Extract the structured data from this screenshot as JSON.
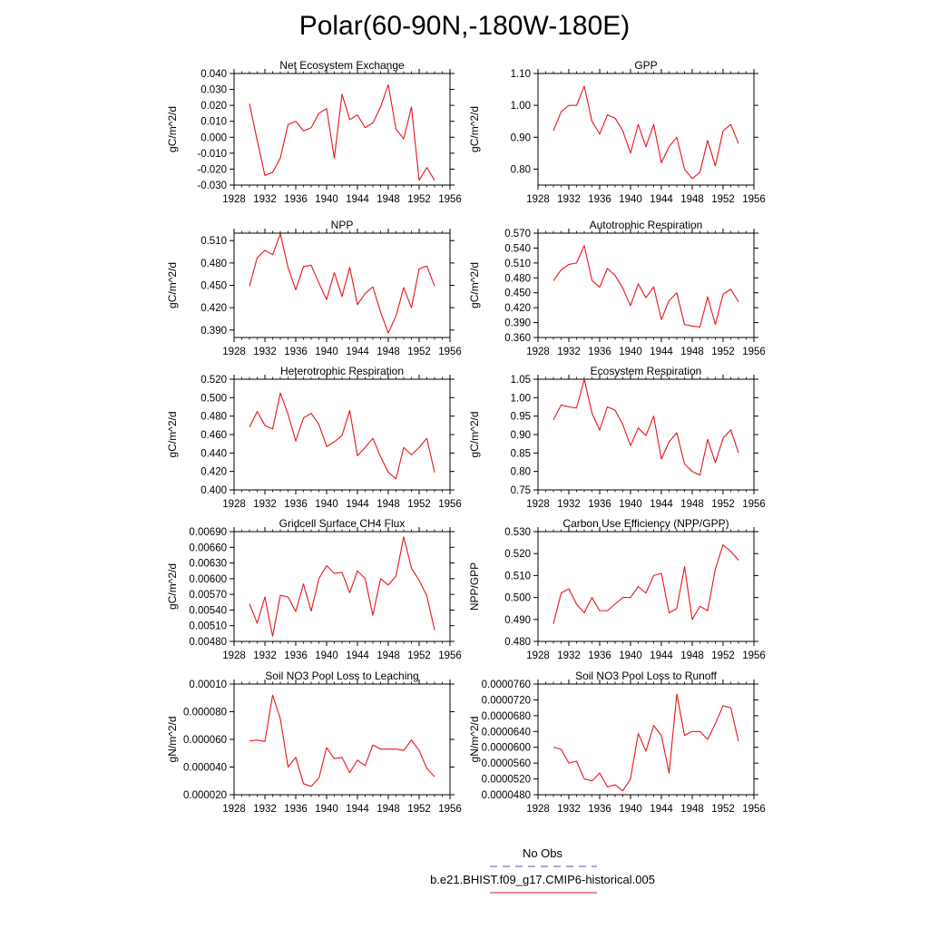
{
  "page_title": "Polar(60-90N,-180W-180E)",
  "series_color": "#e8141a",
  "obs_color": "#5050d0",
  "legend": {
    "obs_label": "No Obs",
    "model_label": "b.e21.BHIST.f09_g17.CMIP6-historical.005"
  },
  "chart_data": [
    {
      "type": "line",
      "title": "Net Ecosystem Exchange",
      "ylabel": "gC/m^2/d",
      "xlim": [
        1928,
        1956
      ],
      "xticks": [
        "1928",
        "1932",
        "1936",
        "1940",
        "1944",
        "1948",
        "1952",
        "1956"
      ],
      "ylim": [
        -0.03,
        0.04
      ],
      "yticks": [
        "-0.030",
        "-0.020",
        "-0.010",
        "0.000",
        "0.010",
        "0.020",
        "0.030",
        "0.040"
      ],
      "x": [
        1930,
        1931,
        1932,
        1933,
        1934,
        1935,
        1936,
        1937,
        1938,
        1939,
        1940,
        1941,
        1942,
        1943,
        1944,
        1945,
        1946,
        1947,
        1948,
        1949,
        1950,
        1951,
        1952,
        1953,
        1954
      ],
      "values": [
        0.021,
        -0.002,
        -0.024,
        -0.022,
        -0.013,
        0.008,
        0.01,
        0.004,
        0.006,
        0.015,
        0.018,
        -0.013,
        0.027,
        0.011,
        0.014,
        0.006,
        0.009,
        0.019,
        0.033,
        0.005,
        -0.001,
        0.019,
        -0.027,
        -0.019,
        -0.027
      ]
    },
    {
      "type": "line",
      "title": "GPP",
      "ylabel": "gC/m^2/d",
      "xlim": [
        1928,
        1956
      ],
      "xticks": [
        "1928",
        "1932",
        "1936",
        "1940",
        "1944",
        "1948",
        "1952",
        "1956"
      ],
      "ylim": [
        0.75,
        1.1
      ],
      "yticks": [
        "0.80",
        "0.90",
        "1.00",
        "1.10"
      ],
      "x": [
        1930,
        1931,
        1932,
        1933,
        1934,
        1935,
        1936,
        1937,
        1938,
        1939,
        1940,
        1941,
        1942,
        1943,
        1944,
        1945,
        1946,
        1947,
        1948,
        1949,
        1950,
        1951,
        1952,
        1953,
        1954
      ],
      "values": [
        0.92,
        0.98,
        1.0,
        1.0,
        1.06,
        0.95,
        0.91,
        0.97,
        0.96,
        0.92,
        0.85,
        0.94,
        0.87,
        0.94,
        0.82,
        0.87,
        0.9,
        0.8,
        0.77,
        0.79,
        0.89,
        0.81,
        0.92,
        0.94,
        0.88
      ]
    },
    {
      "type": "line",
      "title": "NPP",
      "ylabel": "gC/m^2/d",
      "xlim": [
        1928,
        1956
      ],
      "xticks": [
        "1928",
        "1932",
        "1936",
        "1940",
        "1944",
        "1948",
        "1952",
        "1956"
      ],
      "ylim": [
        0.38,
        0.52
      ],
      "yticks": [
        "0.390",
        "0.420",
        "0.450",
        "0.480",
        "0.510"
      ],
      "x": [
        1930,
        1931,
        1932,
        1933,
        1934,
        1935,
        1936,
        1937,
        1938,
        1939,
        1940,
        1941,
        1942,
        1943,
        1944,
        1945,
        1946,
        1947,
        1948,
        1949,
        1950,
        1951,
        1952,
        1953,
        1954
      ],
      "values": [
        0.449,
        0.487,
        0.497,
        0.491,
        0.519,
        0.474,
        0.444,
        0.475,
        0.477,
        0.453,
        0.431,
        0.467,
        0.435,
        0.474,
        0.424,
        0.439,
        0.448,
        0.414,
        0.386,
        0.409,
        0.447,
        0.42,
        0.472,
        0.476,
        0.449
      ]
    },
    {
      "type": "line",
      "title": "Autotrophic Respiration",
      "ylabel": "gC/m^2/d",
      "xlim": [
        1928,
        1956
      ],
      "xticks": [
        "1928",
        "1932",
        "1936",
        "1940",
        "1944",
        "1948",
        "1952",
        "1956"
      ],
      "ylim": [
        0.36,
        0.57
      ],
      "yticks": [
        "0.360",
        "0.390",
        "0.420",
        "0.450",
        "0.480",
        "0.510",
        "0.540",
        "0.570"
      ],
      "x": [
        1930,
        1931,
        1932,
        1933,
        1934,
        1935,
        1936,
        1937,
        1938,
        1939,
        1940,
        1941,
        1942,
        1943,
        1944,
        1945,
        1946,
        1947,
        1948,
        1949,
        1950,
        1951,
        1952,
        1953,
        1954
      ],
      "values": [
        0.474,
        0.496,
        0.507,
        0.51,
        0.545,
        0.475,
        0.461,
        0.499,
        0.485,
        0.459,
        0.424,
        0.468,
        0.44,
        0.462,
        0.396,
        0.434,
        0.45,
        0.386,
        0.383,
        0.381,
        0.442,
        0.386,
        0.447,
        0.457,
        0.432
      ]
    },
    {
      "type": "line",
      "title": "Heterotrophic Respiration",
      "ylabel": "gC/m^2/d",
      "xlim": [
        1928,
        1956
      ],
      "xticks": [
        "1928",
        "1932",
        "1936",
        "1940",
        "1944",
        "1948",
        "1952",
        "1956"
      ],
      "ylim": [
        0.4,
        0.52
      ],
      "yticks": [
        "0.400",
        "0.420",
        "0.440",
        "0.460",
        "0.480",
        "0.500",
        "0.520"
      ],
      "x": [
        1930,
        1931,
        1932,
        1933,
        1934,
        1935,
        1936,
        1937,
        1938,
        1939,
        1940,
        1941,
        1942,
        1943,
        1944,
        1945,
        1946,
        1947,
        1948,
        1949,
        1950,
        1951,
        1952,
        1953,
        1954
      ],
      "values": [
        0.468,
        0.485,
        0.47,
        0.466,
        0.505,
        0.482,
        0.453,
        0.478,
        0.483,
        0.471,
        0.447,
        0.452,
        0.459,
        0.486,
        0.437,
        0.446,
        0.456,
        0.436,
        0.419,
        0.412,
        0.446,
        0.438,
        0.446,
        0.456,
        0.419
      ]
    },
    {
      "type": "line",
      "title": "Ecosystem Respiration",
      "ylabel": "gC/m^2/d",
      "xlim": [
        1928,
        1956
      ],
      "xticks": [
        "1928",
        "1932",
        "1936",
        "1940",
        "1944",
        "1948",
        "1952",
        "1956"
      ],
      "ylim": [
        0.75,
        1.05
      ],
      "yticks": [
        "0.75",
        "0.80",
        "0.85",
        "0.90",
        "0.95",
        "1.00",
        "1.05"
      ],
      "x": [
        1930,
        1931,
        1932,
        1933,
        1934,
        1935,
        1936,
        1937,
        1938,
        1939,
        1940,
        1941,
        1942,
        1943,
        1944,
        1945,
        1946,
        1947,
        1948,
        1949,
        1950,
        1951,
        1952,
        1953,
        1954
      ],
      "values": [
        0.94,
        0.98,
        0.975,
        0.972,
        1.05,
        0.958,
        0.912,
        0.975,
        0.966,
        0.927,
        0.87,
        0.918,
        0.897,
        0.95,
        0.834,
        0.88,
        0.905,
        0.82,
        0.8,
        0.79,
        0.887,
        0.824,
        0.89,
        0.913,
        0.85
      ]
    },
    {
      "type": "line",
      "title": "Gridcell Surface CH4 Flux",
      "ylabel": "gC/m^2/d",
      "xlim": [
        1928,
        1956
      ],
      "xticks": [
        "1928",
        "1932",
        "1936",
        "1940",
        "1944",
        "1948",
        "1952",
        "1956"
      ],
      "ylim": [
        0.0048,
        0.0069
      ],
      "yticks": [
        "0.00480",
        "0.00510",
        "0.00540",
        "0.00570",
        "0.00600",
        "0.00630",
        "0.00660",
        "0.00690"
      ],
      "x": [
        1930,
        1931,
        1932,
        1933,
        1934,
        1935,
        1936,
        1937,
        1938,
        1939,
        1940,
        1941,
        1942,
        1943,
        1944,
        1945,
        1946,
        1947,
        1948,
        1949,
        1950,
        1951,
        1952,
        1953,
        1954
      ],
      "values": [
        0.00552,
        0.00515,
        0.00565,
        0.0049,
        0.00568,
        0.00565,
        0.00537,
        0.0059,
        0.00538,
        0.006,
        0.00625,
        0.0061,
        0.00612,
        0.00573,
        0.00615,
        0.006,
        0.0053,
        0.006,
        0.00588,
        0.00605,
        0.0068,
        0.0062,
        0.00597,
        0.00567,
        0.00502
      ]
    },
    {
      "type": "line",
      "title": "Carbon Use Efficiency (NPP/GPP)",
      "ylabel": "NPP/GPP",
      "xlim": [
        1928,
        1956
      ],
      "xticks": [
        "1928",
        "1932",
        "1936",
        "1940",
        "1944",
        "1948",
        "1952",
        "1956"
      ],
      "ylim": [
        0.48,
        0.53
      ],
      "yticks": [
        "0.480",
        "0.490",
        "0.500",
        "0.510",
        "0.520",
        "0.530"
      ],
      "x": [
        1930,
        1931,
        1932,
        1933,
        1934,
        1935,
        1936,
        1937,
        1938,
        1939,
        1940,
        1941,
        1942,
        1943,
        1944,
        1945,
        1946,
        1947,
        1948,
        1949,
        1950,
        1951,
        1952,
        1953,
        1954
      ],
      "values": [
        0.488,
        0.502,
        0.504,
        0.497,
        0.493,
        0.5,
        0.494,
        0.494,
        0.497,
        0.5,
        0.5,
        0.505,
        0.502,
        0.51,
        0.511,
        0.493,
        0.495,
        0.514,
        0.49,
        0.496,
        0.494,
        0.513,
        0.524,
        0.521,
        0.517
      ]
    },
    {
      "type": "line",
      "title": "Soil NO3 Pool Loss to Leaching",
      "ylabel": "gN/m^2/d",
      "xlim": [
        1928,
        1956
      ],
      "xticks": [
        "1928",
        "1932",
        "1936",
        "1940",
        "1944",
        "1948",
        "1952",
        "1956"
      ],
      "ylim": [
        2e-05,
        0.0001
      ],
      "yticks": [
        "0.000020",
        "0.000040",
        "0.000060",
        "0.000080",
        "0.00010"
      ],
      "x": [
        1930,
        1931,
        1932,
        1933,
        1934,
        1935,
        1936,
        1937,
        1938,
        1939,
        1940,
        1941,
        1942,
        1943,
        1944,
        1945,
        1946,
        1947,
        1948,
        1949,
        1950,
        1951,
        1952,
        1953,
        1954
      ],
      "values": [
        5.9e-05,
        5.95e-05,
        5.85e-05,
        9.2e-05,
        7.5e-05,
        4e-05,
        4.7e-05,
        2.8e-05,
        2.6e-05,
        3.2e-05,
        5.4e-05,
        4.6e-05,
        4.7e-05,
        3.6e-05,
        4.5e-05,
        4.1e-05,
        5.6e-05,
        5.3e-05,
        5.3e-05,
        5.3e-05,
        5.2e-05,
        5.95e-05,
        5.2e-05,
        3.9e-05,
        3.3e-05
      ]
    },
    {
      "type": "line",
      "title": "Soil NO3 Pool Loss to Runoff",
      "ylabel": "gN/m^2/d",
      "xlim": [
        1928,
        1956
      ],
      "xticks": [
        "1928",
        "1932",
        "1936",
        "1940",
        "1944",
        "1948",
        "1952",
        "1956"
      ],
      "ylim": [
        4.8e-05,
        7.6e-05
      ],
      "yticks": [
        "0.0000480",
        "0.0000520",
        "0.0000560",
        "0.0000600",
        "0.0000640",
        "0.0000680",
        "0.0000720",
        "0.0000760"
      ],
      "x": [
        1930,
        1931,
        1932,
        1933,
        1934,
        1935,
        1936,
        1937,
        1938,
        1939,
        1940,
        1941,
        1942,
        1943,
        1944,
        1945,
        1946,
        1947,
        1948,
        1949,
        1950,
        1951,
        1952,
        1953,
        1954
      ],
      "values": [
        6e-05,
        5.95e-05,
        5.6e-05,
        5.65e-05,
        5.2e-05,
        5.15e-05,
        5.35e-05,
        5e-05,
        5.05e-05,
        4.9e-05,
        5.2e-05,
        6.35e-05,
        5.9e-05,
        6.55e-05,
        6.3e-05,
        5.35e-05,
        7.35e-05,
        6.3e-05,
        6.4e-05,
        6.4e-05,
        6.2e-05,
        6.6e-05,
        7.05e-05,
        7e-05,
        6.15e-05
      ]
    }
  ]
}
